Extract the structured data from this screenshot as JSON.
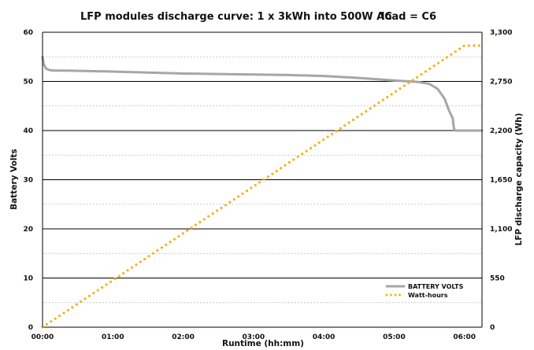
{
  "chart_data": {
    "type": "line",
    "title": "LFP modules discharge curve: 1 x 3kWh into 500W AC",
    "subtitle": "load = C6",
    "xlabel": "Runtime (hh:mm)",
    "ylabel_left": "Battery Volts",
    "ylabel_right": "LFP discharge capacity (Wh)",
    "x_unit": "minutes",
    "xlim": [
      0,
      375
    ],
    "x_ticks": [
      "00:00",
      "01:00",
      "02:00",
      "03:00",
      "04:00",
      "05:00",
      "06:00"
    ],
    "ylim_left": [
      0,
      60
    ],
    "y_ticks_left": [
      "0",
      "10",
      "20",
      "30",
      "40",
      "50",
      "60"
    ],
    "ylim_right": [
      0,
      3300
    ],
    "y_ticks_right": [
      "0",
      "550",
      "1,100",
      "1,650",
      "2,200",
      "2,750",
      "3,300"
    ],
    "grid": "horizontal major solid, minor dashed",
    "legend_position": "bottom-right",
    "series": [
      {
        "name": "BATTERY VOLTS",
        "axis": "left",
        "color": "#a6a6a6",
        "style": "solid",
        "x": [
          0,
          1,
          3,
          6,
          10,
          20,
          40,
          60,
          90,
          120,
          150,
          180,
          210,
          240,
          270,
          300,
          320,
          330,
          337,
          343,
          347,
          350,
          351,
          352,
          360,
          375
        ],
        "y": [
          55,
          53.5,
          52.6,
          52.3,
          52.2,
          52.2,
          52.1,
          52.0,
          51.8,
          51.6,
          51.5,
          51.4,
          51.3,
          51.1,
          50.7,
          50.2,
          49.9,
          49.5,
          48.5,
          46.5,
          44.0,
          42.5,
          40.5,
          40.0,
          40.0,
          40.0
        ]
      },
      {
        "name": "Watt-hours",
        "axis": "right",
        "color": "#f5b21b",
        "style": "dotted",
        "x": [
          0,
          360,
          375
        ],
        "y": [
          0,
          3150,
          3150
        ]
      }
    ]
  }
}
